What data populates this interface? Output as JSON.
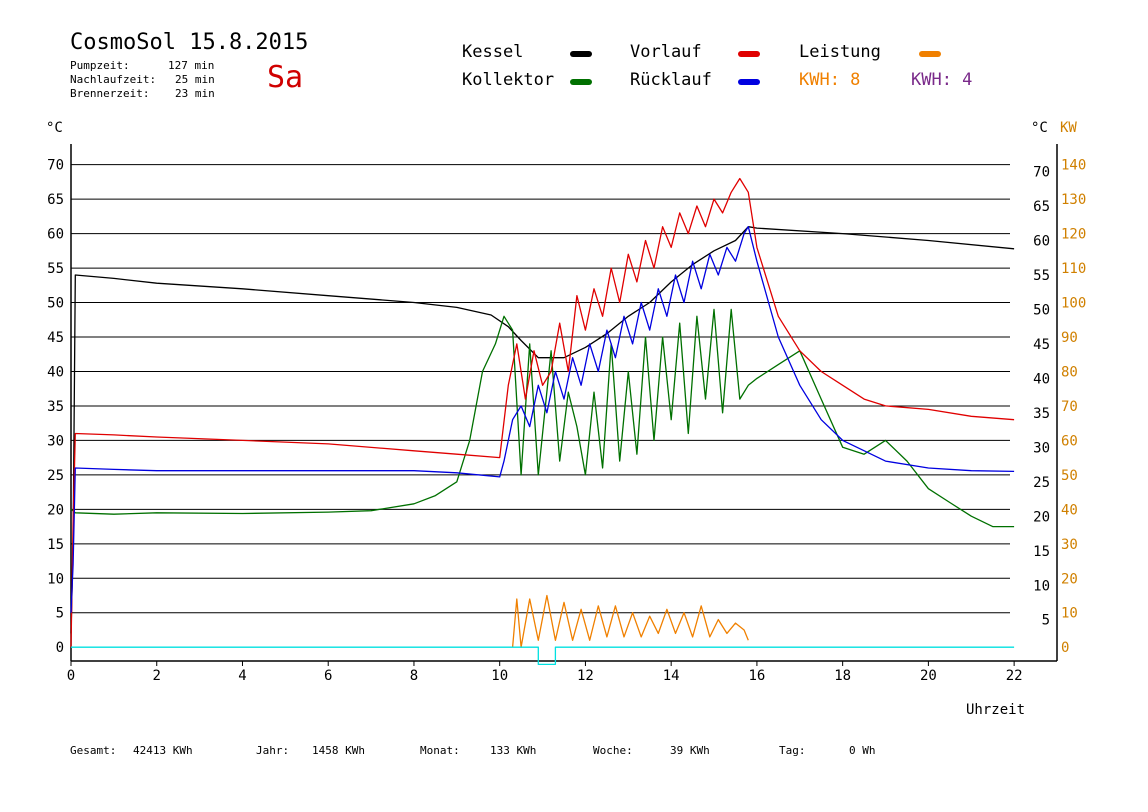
{
  "header": {
    "title": "CosmoSol 15.8.2015",
    "day": "Sa",
    "stats": [
      {
        "label": "Pumpzeit:",
        "value": "127 min"
      },
      {
        "label": "Nachlaufzeit:",
        "value": "25 min"
      },
      {
        "label": "Brennerzeit:",
        "value": "23 min"
      }
    ]
  },
  "legend": {
    "kessel": "Kessel",
    "kollektor": "Kollektor",
    "vorlauf": "Vorlauf",
    "ruecklauf": "Rücklauf",
    "leistung": "Leistung",
    "kwh1": "KWH: 8",
    "kwh2": "KWH: 4"
  },
  "colors": {
    "kessel": "#000000",
    "kollektor": "#007000",
    "vorlauf": "#e00000",
    "ruecklauf": "#0000e0",
    "leistung": "#f08000",
    "kwh2": "#7a2a8a",
    "baseline": "#00e0e0"
  },
  "axes": {
    "left_unit": "°C",
    "right_unit_c": "°C",
    "right_unit_kw": "KW",
    "xlabel": "Uhrzeit"
  },
  "footer": {
    "gesamt_label": "Gesamt:",
    "gesamt_value": "42413 KWh",
    "jahr_label": "Jahr:",
    "jahr_value": "1458 KWh",
    "monat_label": "Monat:",
    "monat_value": "133 KWh",
    "woche_label": "Woche:",
    "woche_value": "39 KWh",
    "tag_label": "Tag:",
    "tag_value": "0 Wh"
  },
  "chart_data": {
    "type": "line",
    "x_unit": "h",
    "xlim": [
      0,
      23
    ],
    "ylim_temp": [
      -2,
      73
    ],
    "ylim_kw": [
      -4,
      146
    ],
    "x_ticks": [
      0,
      2,
      4,
      6,
      8,
      10,
      12,
      14,
      16,
      18,
      20,
      22
    ],
    "y_ticks_left": [
      0,
      5,
      10,
      15,
      20,
      25,
      30,
      35,
      40,
      45,
      50,
      55,
      60,
      65,
      70
    ],
    "y_ticks_right_c": [
      5,
      10,
      15,
      20,
      25,
      30,
      35,
      40,
      45,
      50,
      55,
      60,
      65,
      70
    ],
    "y_ticks_right_kw": [
      0,
      10,
      20,
      30,
      40,
      50,
      60,
      70,
      80,
      90,
      100,
      110,
      120,
      130,
      140
    ],
    "gridlines": [
      5,
      10,
      15,
      20,
      25,
      30,
      35,
      40,
      45,
      50,
      55,
      60,
      65,
      70
    ],
    "series": [
      {
        "name": "Kessel",
        "color": "#000000",
        "x": [
          0,
          0.05,
          0.1,
          1,
          2,
          4,
          6,
          8,
          9,
          9.8,
          10.2,
          10.5,
          10.9,
          11.5,
          12,
          12.5,
          13,
          13.5,
          14,
          14.5,
          15,
          15.5,
          15.8,
          16,
          18,
          20,
          22
        ],
        "y": [
          2,
          15,
          54,
          53.5,
          52.8,
          52,
          51,
          50,
          49.3,
          48.2,
          46.5,
          44.5,
          42,
          42,
          43.5,
          45.5,
          48,
          50,
          53,
          55.5,
          57.5,
          59,
          61,
          60.8,
          60,
          59,
          57.8
        ]
      },
      {
        "name": "Kollektor",
        "color": "#007000",
        "x": [
          0,
          0.1,
          1,
          2,
          4,
          6,
          7,
          8,
          8.5,
          9,
          9.3,
          9.6,
          9.9,
          10.1,
          10.3,
          10.5,
          10.7,
          10.9,
          11.2,
          11.4,
          11.6,
          11.8,
          12.0,
          12.2,
          12.4,
          12.6,
          12.8,
          13.0,
          13.2,
          13.4,
          13.6,
          13.8,
          14.0,
          14.2,
          14.4,
          14.6,
          14.8,
          15.0,
          15.2,
          15.4,
          15.6,
          15.8,
          16,
          16.5,
          17,
          17.5,
          18,
          18.5,
          19,
          19.5,
          20,
          20.5,
          21,
          21.5,
          22
        ],
        "y": [
          20,
          19.5,
          19.3,
          19.5,
          19.4,
          19.6,
          19.8,
          20.8,
          22,
          24,
          30,
          40,
          44,
          48,
          46,
          25,
          44,
          25,
          43,
          27,
          37,
          32,
          25,
          37,
          26,
          44,
          27,
          40,
          28,
          45,
          30,
          45,
          33,
          47,
          31,
          48,
          36,
          49,
          34,
          49,
          36,
          38,
          39,
          41,
          43,
          36,
          29,
          28,
          30,
          27,
          23,
          21,
          19,
          17.5,
          17.5
        ]
      },
      {
        "name": "Vorlauf",
        "color": "#e00000",
        "x": [
          0,
          0.05,
          0.1,
          1,
          2,
          4,
          6,
          8,
          9,
          10,
          10.2,
          10.4,
          10.6,
          10.8,
          11.0,
          11.2,
          11.4,
          11.6,
          11.8,
          12.0,
          12.2,
          12.4,
          12.6,
          12.8,
          13.0,
          13.2,
          13.4,
          13.6,
          13.8,
          14.0,
          14.2,
          14.4,
          14.6,
          14.8,
          15.0,
          15.2,
          15.4,
          15.6,
          15.8,
          16,
          16.5,
          17,
          17.5,
          18,
          18.5,
          19,
          20,
          21,
          22
        ],
        "y": [
          0,
          18,
          31,
          30.8,
          30.5,
          30,
          29.5,
          28.5,
          28,
          27.5,
          38,
          44,
          36,
          43,
          38,
          40,
          47,
          40,
          51,
          46,
          52,
          48,
          55,
          50,
          57,
          53,
          59,
          55,
          61,
          58,
          63,
          60,
          64,
          61,
          65,
          63,
          66,
          68,
          66,
          58,
          48,
          43,
          40,
          38,
          36,
          35,
          34.5,
          33.5,
          33
        ]
      },
      {
        "name": "Rücklauf",
        "color": "#0000e0",
        "x": [
          0,
          0.05,
          0.1,
          1,
          2,
          4,
          6,
          8,
          9,
          10,
          10.1,
          10.3,
          10.5,
          10.7,
          10.9,
          11.1,
          11.3,
          11.5,
          11.7,
          11.9,
          12.1,
          12.3,
          12.5,
          12.7,
          12.9,
          13.1,
          13.3,
          13.5,
          13.7,
          13.9,
          14.1,
          14.3,
          14.5,
          14.7,
          14.9,
          15.1,
          15.3,
          15.5,
          15.7,
          15.8,
          16,
          16.5,
          17,
          17.5,
          18,
          19,
          20,
          21,
          22
        ],
        "y": [
          5,
          12,
          26,
          25.8,
          25.6,
          25.6,
          25.6,
          25.6,
          25.3,
          24.7,
          27,
          33,
          35,
          32,
          38,
          34,
          40,
          36,
          42,
          38,
          44,
          40,
          46,
          42,
          48,
          44,
          50,
          46,
          52,
          48,
          54,
          50,
          56,
          52,
          57,
          54,
          58,
          56,
          60,
          61,
          56,
          45,
          38,
          33,
          30,
          27,
          26,
          25.6,
          25.5
        ]
      },
      {
        "name": "Leistung",
        "color": "#f08000",
        "axis": "kw",
        "x": [
          10.3,
          10.4,
          10.5,
          10.7,
          10.9,
          11.1,
          11.3,
          11.5,
          11.7,
          11.9,
          12.1,
          12.3,
          12.5,
          12.7,
          12.9,
          13.1,
          13.3,
          13.5,
          13.7,
          13.9,
          14.1,
          14.3,
          14.5,
          14.7,
          14.9,
          15.1,
          15.3,
          15.5,
          15.7,
          15.8
        ],
        "y": [
          0,
          14,
          0,
          14,
          2,
          15,
          2,
          13,
          2,
          11,
          2,
          12,
          3,
          12,
          3,
          10,
          3,
          9,
          4,
          11,
          4,
          10,
          3,
          12,
          3,
          8,
          4,
          7,
          5,
          2
        ]
      },
      {
        "name": "Baseline",
        "color": "#00e0e0",
        "x": [
          0,
          10.9,
          10.9,
          11.3,
          11.3,
          22
        ],
        "y": [
          0,
          0,
          -2.5,
          -2.5,
          0,
          0
        ]
      }
    ]
  }
}
